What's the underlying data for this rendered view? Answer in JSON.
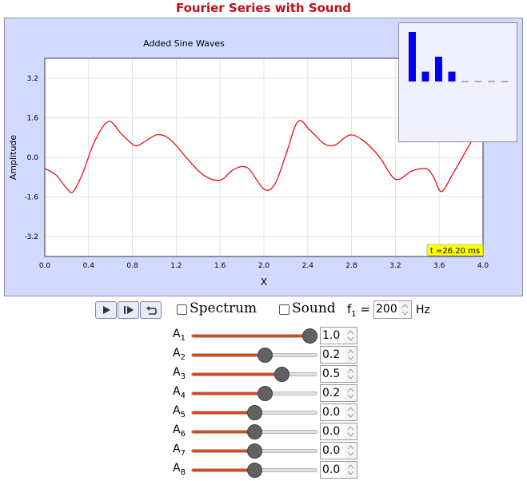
{
  "app": {
    "title": "Fourier Series with Sound"
  },
  "chart_data": {
    "type": "line",
    "title": "Added Sine Waves",
    "xlabel": "X",
    "ylabel": "Amplitude",
    "xlim": [
      0.0,
      4.0
    ],
    "ylim": [
      -4.0,
      4.0
    ],
    "xticks": [
      "0.0",
      "0.4",
      "0.8",
      "1.2",
      "1.6",
      "2.0",
      "2.4",
      "2.8",
      "3.2",
      "3.6",
      "4.0"
    ],
    "yticks": [
      "3.2",
      "1.6",
      "0.0",
      "-1.6",
      "-3.2"
    ],
    "grid": true,
    "series_color": "#e81010",
    "time_label": "t =26.20 ms",
    "series": [
      {
        "x": [
          0.0,
          0.1,
          0.2,
          0.26,
          0.35,
          0.45,
          0.58,
          0.7,
          0.82,
          0.9,
          1.03,
          1.15,
          1.3,
          1.45,
          1.6,
          1.72,
          1.85,
          2.0,
          2.1,
          2.2,
          2.31,
          2.42,
          2.55,
          2.65,
          2.78,
          2.9,
          3.05,
          3.2,
          3.35,
          3.48,
          3.55,
          3.62,
          3.72,
          3.85,
          4.0
        ],
        "y": [
          -0.45,
          -0.7,
          -1.25,
          -1.38,
          -0.6,
          0.6,
          1.45,
          0.95,
          0.48,
          0.6,
          0.92,
          0.7,
          -0.05,
          -0.72,
          -0.92,
          -0.5,
          -0.42,
          -1.28,
          -1.08,
          0.1,
          1.45,
          1.1,
          0.55,
          0.5,
          0.9,
          0.7,
          0.05,
          -0.88,
          -0.55,
          -0.45,
          -0.8,
          -1.38,
          -0.7,
          0.3,
          1.45
        ]
      }
    ]
  },
  "spectrum_inset": {
    "bars": [
      1.0,
      0.2,
      0.5,
      0.2,
      0.0,
      0.0,
      0.0,
      0.0
    ],
    "bar_color": "#0000ee",
    "zero_color": "#9a9a9a"
  },
  "controls": {
    "buttons": [
      {
        "name": "play-icon"
      },
      {
        "name": "step-icon"
      },
      {
        "name": "reset-icon"
      }
    ],
    "spectrum_label": "Spectrum",
    "sound_label": "Sound",
    "f1_label": "f",
    "f1_sub": "1",
    "f1_eq": " =",
    "f1_value": "200",
    "hz_label": "Hz"
  },
  "amplitudes": [
    {
      "label": "A",
      "sub": "1",
      "value": 1.0,
      "text": "1.0"
    },
    {
      "label": "A",
      "sub": "2",
      "value": 0.2,
      "text": "0.2"
    },
    {
      "label": "A",
      "sub": "3",
      "value": 0.5,
      "text": "0.5"
    },
    {
      "label": "A",
      "sub": "4",
      "value": 0.2,
      "text": "0.2"
    },
    {
      "label": "A",
      "sub": "5",
      "value": 0.0,
      "text": "0.0"
    },
    {
      "label": "A",
      "sub": "6",
      "value": 0.0,
      "text": "0.0"
    },
    {
      "label": "A",
      "sub": "7",
      "value": 0.0,
      "text": "0.0"
    },
    {
      "label": "A",
      "sub": "8",
      "value": 0.0,
      "text": "0.0"
    }
  ],
  "slider_range": [
    -1.0,
    1.0
  ]
}
